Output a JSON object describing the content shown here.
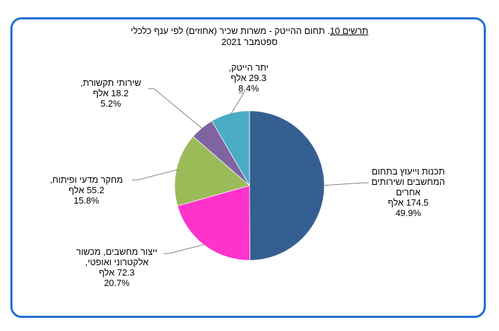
{
  "chart_data": {
    "type": "pie",
    "title_label": "תרשים 10",
    "title_rest": ". תחום ההייטק - משרות שכיר (אחוזים) לפי ענף כלכלי",
    "subtitle": "ספטמבר 2021",
    "slices": [
      {
        "label_lines": [
          "תכנות וייעוץ  בתחום",
          "המחשבים ושירותים",
          "אחרים"
        ],
        "value_text": "174.5  אלף",
        "value": 174.5,
        "percent": 49.9,
        "percent_text": "49.9%",
        "color": "#355f91"
      },
      {
        "label_lines": [
          "ייצור מחשבים, מכשור",
          "אלקטרוני ואופטי,"
        ],
        "value_text": "72.3  אלף",
        "value": 72.3,
        "percent": 20.7,
        "percent_text": "20.7%",
        "color": "#ff33cc"
      },
      {
        "label_lines": [
          "מחקר מדעי ופיתוח,"
        ],
        "value_text": "55.2  אלף",
        "value": 55.2,
        "percent": 15.8,
        "percent_text": "15.8%",
        "color": "#9bbb59"
      },
      {
        "label_lines": [
          "שירותי תקשורת,"
        ],
        "value_text": "18.2  אלף",
        "value": 18.2,
        "percent": 5.2,
        "percent_text": "5.2%",
        "color": "#8064a2"
      },
      {
        "label_lines": [
          "יתר הייטק,"
        ],
        "value_text": "29.3  אלף",
        "value": 29.3,
        "percent": 8.4,
        "percent_text": "8.4%",
        "color": "#4bacc6"
      }
    ]
  }
}
